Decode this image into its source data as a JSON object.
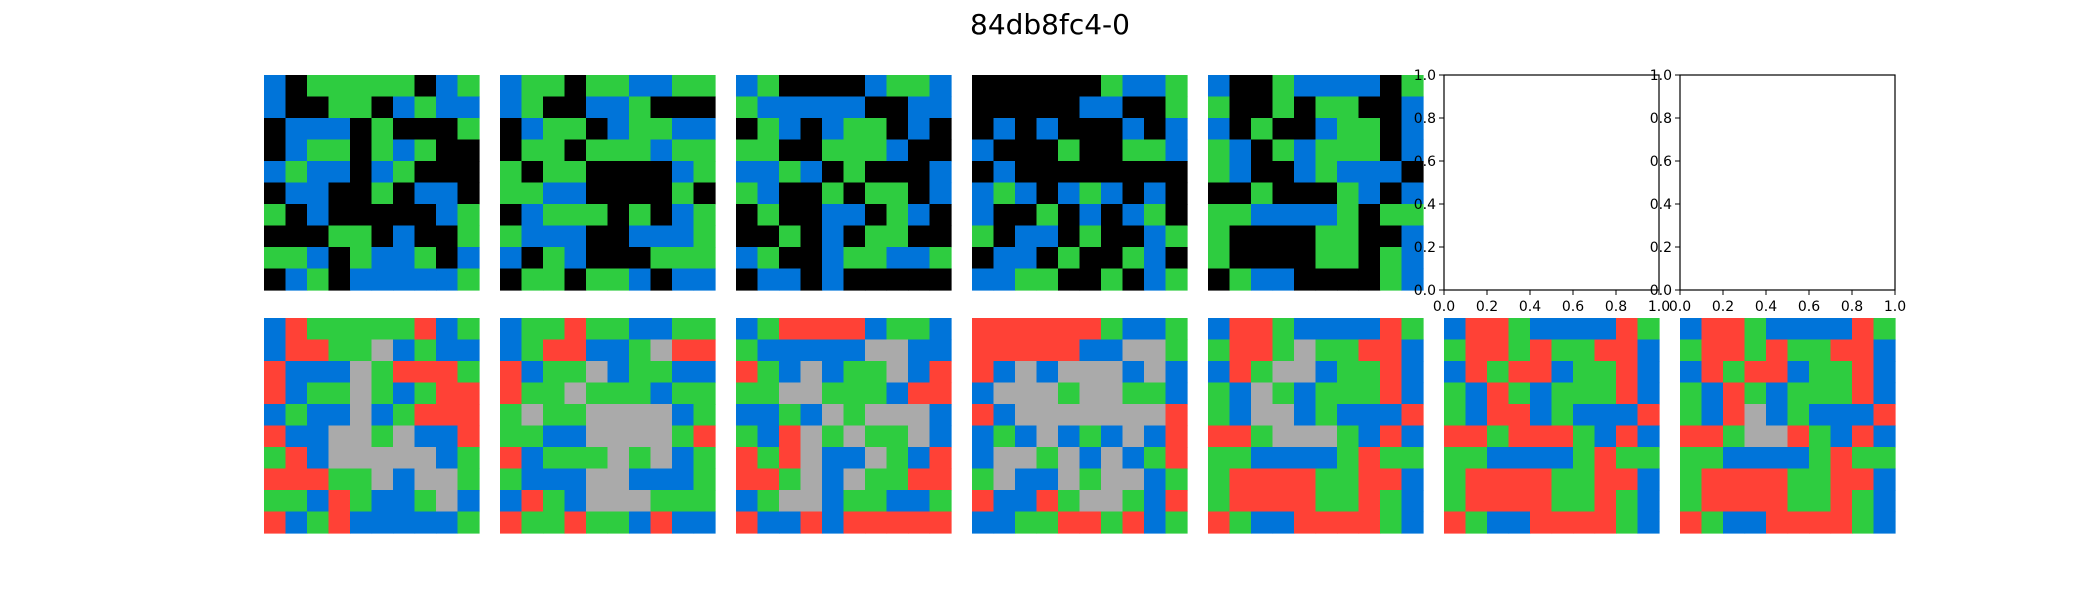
{
  "title": "84db8fc4-0",
  "palette": {
    "0": "#000000",
    "1": "#0074d9",
    "3": "#2ecc40",
    "5": "#aaaaaa",
    "2": "#ff4136",
    "empty_axes_background": "#ffffff"
  },
  "grids": {
    "inputs": [
      [
        [
          1,
          0,
          3,
          3,
          3,
          3,
          3,
          0,
          1,
          3
        ],
        [
          1,
          0,
          0,
          3,
          3,
          0,
          1,
          3,
          1,
          1
        ],
        [
          0,
          1,
          1,
          1,
          0,
          3,
          0,
          0,
          0,
          3
        ],
        [
          0,
          1,
          3,
          3,
          0,
          3,
          1,
          3,
          0,
          0
        ],
        [
          1,
          3,
          1,
          1,
          0,
          1,
          3,
          0,
          0,
          0
        ],
        [
          0,
          1,
          1,
          0,
          0,
          3,
          0,
          1,
          1,
          0
        ],
        [
          3,
          0,
          1,
          0,
          0,
          0,
          0,
          0,
          1,
          3
        ],
        [
          0,
          0,
          0,
          3,
          3,
          0,
          1,
          0,
          0,
          3
        ],
        [
          3,
          3,
          1,
          0,
          3,
          1,
          1,
          3,
          0,
          1
        ],
        [
          0,
          1,
          3,
          0,
          1,
          1,
          1,
          1,
          1,
          3
        ]
      ],
      [
        [
          1,
          3,
          3,
          0,
          3,
          3,
          1,
          1,
          3,
          3
        ],
        [
          1,
          3,
          0,
          0,
          1,
          1,
          3,
          0,
          0,
          0
        ],
        [
          0,
          1,
          3,
          3,
          0,
          1,
          3,
          3,
          1,
          1
        ],
        [
          0,
          3,
          3,
          0,
          3,
          3,
          3,
          1,
          3,
          3
        ],
        [
          3,
          0,
          3,
          3,
          0,
          0,
          0,
          0,
          1,
          3
        ],
        [
          3,
          3,
          1,
          1,
          0,
          0,
          0,
          0,
          3,
          0
        ],
        [
          0,
          1,
          3,
          3,
          3,
          0,
          3,
          0,
          1,
          3
        ],
        [
          3,
          1,
          1,
          1,
          0,
          0,
          1,
          1,
          1,
          3
        ],
        [
          1,
          0,
          3,
          1,
          0,
          0,
          0,
          3,
          3,
          3
        ],
        [
          0,
          3,
          3,
          0,
          3,
          3,
          1,
          0,
          1,
          1
        ]
      ],
      [
        [
          1,
          3,
          0,
          0,
          0,
          0,
          1,
          3,
          3,
          1
        ],
        [
          3,
          1,
          1,
          1,
          1,
          1,
          0,
          0,
          1,
          1
        ],
        [
          0,
          3,
          1,
          0,
          1,
          3,
          3,
          0,
          1,
          0
        ],
        [
          3,
          3,
          0,
          0,
          3,
          3,
          3,
          1,
          0,
          0
        ],
        [
          1,
          1,
          3,
          1,
          0,
          3,
          0,
          0,
          0,
          1
        ],
        [
          3,
          1,
          0,
          0,
          3,
          0,
          3,
          3,
          0,
          1
        ],
        [
          0,
          3,
          0,
          0,
          1,
          1,
          0,
          3,
          1,
          0
        ],
        [
          0,
          0,
          3,
          0,
          1,
          0,
          3,
          3,
          0,
          0
        ],
        [
          1,
          3,
          0,
          0,
          1,
          3,
          3,
          1,
          1,
          3
        ],
        [
          0,
          1,
          1,
          0,
          1,
          0,
          0,
          0,
          0,
          0
        ]
      ],
      [
        [
          0,
          0,
          0,
          0,
          0,
          0,
          3,
          1,
          1,
          3
        ],
        [
          0,
          0,
          0,
          0,
          0,
          1,
          1,
          0,
          0,
          3
        ],
        [
          0,
          1,
          0,
          1,
          0,
          0,
          0,
          1,
          0,
          1
        ],
        [
          1,
          0,
          0,
          0,
          3,
          0,
          0,
          3,
          3,
          1
        ],
        [
          0,
          1,
          0,
          0,
          0,
          0,
          0,
          0,
          0,
          0
        ],
        [
          1,
          3,
          1,
          0,
          1,
          3,
          1,
          0,
          1,
          0
        ],
        [
          1,
          0,
          0,
          3,
          0,
          1,
          0,
          1,
          3,
          0
        ],
        [
          3,
          0,
          1,
          1,
          0,
          3,
          0,
          0,
          1,
          3
        ],
        [
          0,
          1,
          1,
          0,
          3,
          0,
          0,
          3,
          1,
          0
        ],
        [
          1,
          1,
          3,
          3,
          0,
          0,
          3,
          0,
          1,
          3
        ]
      ],
      [
        [
          1,
          0,
          0,
          3,
          1,
          1,
          1,
          1,
          0,
          3
        ],
        [
          3,
          0,
          0,
          3,
          0,
          3,
          3,
          0,
          0,
          1
        ],
        [
          1,
          0,
          3,
          0,
          0,
          1,
          3,
          3,
          0,
          1
        ],
        [
          3,
          1,
          0,
          3,
          1,
          3,
          3,
          3,
          0,
          1
        ],
        [
          3,
          1,
          0,
          0,
          1,
          3,
          1,
          1,
          1,
          0
        ],
        [
          0,
          0,
          3,
          0,
          0,
          0,
          3,
          1,
          0,
          1
        ],
        [
          3,
          3,
          1,
          1,
          1,
          1,
          3,
          0,
          3,
          3
        ],
        [
          3,
          0,
          0,
          0,
          0,
          3,
          3,
          0,
          0,
          1
        ],
        [
          3,
          0,
          0,
          0,
          0,
          3,
          3,
          0,
          3,
          1
        ],
        [
          0,
          3,
          1,
          1,
          0,
          0,
          0,
          0,
          3,
          1
        ]
      ]
    ],
    "outputs": [
      [
        [
          1,
          2,
          3,
          3,
          3,
          3,
          3,
          2,
          1,
          3
        ],
        [
          1,
          2,
          2,
          3,
          3,
          5,
          1,
          3,
          1,
          1
        ],
        [
          2,
          1,
          1,
          1,
          5,
          3,
          2,
          2,
          2,
          3
        ],
        [
          2,
          1,
          3,
          3,
          5,
          3,
          1,
          3,
          2,
          2
        ],
        [
          1,
          3,
          1,
          1,
          5,
          1,
          3,
          2,
          2,
          2
        ],
        [
          2,
          1,
          1,
          5,
          5,
          3,
          5,
          1,
          1,
          2
        ],
        [
          3,
          2,
          1,
          5,
          5,
          5,
          5,
          5,
          1,
          3
        ],
        [
          2,
          2,
          2,
          3,
          3,
          5,
          1,
          5,
          5,
          3
        ],
        [
          3,
          3,
          1,
          2,
          3,
          1,
          1,
          3,
          5,
          1
        ],
        [
          2,
          1,
          3,
          2,
          1,
          1,
          1,
          1,
          1,
          3
        ]
      ],
      [
        [
          1,
          3,
          3,
          2,
          3,
          3,
          1,
          1,
          3,
          3
        ],
        [
          1,
          3,
          2,
          2,
          1,
          1,
          3,
          5,
          2,
          2
        ],
        [
          2,
          1,
          3,
          3,
          5,
          1,
          3,
          3,
          1,
          1
        ],
        [
          2,
          3,
          3,
          5,
          3,
          3,
          3,
          1,
          3,
          3
        ],
        [
          3,
          5,
          3,
          3,
          5,
          5,
          5,
          5,
          1,
          3
        ],
        [
          3,
          3,
          1,
          1,
          5,
          5,
          5,
          5,
          3,
          2
        ],
        [
          2,
          1,
          3,
          3,
          3,
          5,
          3,
          5,
          1,
          3
        ],
        [
          3,
          1,
          1,
          1,
          5,
          5,
          1,
          1,
          1,
          3
        ],
        [
          1,
          2,
          3,
          1,
          5,
          5,
          5,
          3,
          3,
          3
        ],
        [
          2,
          3,
          3,
          2,
          3,
          3,
          1,
          2,
          1,
          1
        ]
      ],
      [
        [
          1,
          3,
          2,
          2,
          2,
          2,
          1,
          3,
          3,
          1
        ],
        [
          3,
          1,
          1,
          1,
          1,
          1,
          5,
          5,
          1,
          1
        ],
        [
          2,
          3,
          1,
          5,
          1,
          3,
          3,
          5,
          1,
          2
        ],
        [
          3,
          3,
          5,
          5,
          3,
          3,
          3,
          1,
          2,
          2
        ],
        [
          1,
          1,
          3,
          1,
          5,
          3,
          5,
          5,
          5,
          1
        ],
        [
          3,
          1,
          2,
          5,
          3,
          5,
          3,
          3,
          5,
          1
        ],
        [
          2,
          3,
          2,
          5,
          1,
          1,
          5,
          3,
          1,
          2
        ],
        [
          2,
          2,
          3,
          5,
          1,
          5,
          3,
          3,
          2,
          2
        ],
        [
          1,
          3,
          5,
          5,
          1,
          3,
          3,
          1,
          1,
          3
        ],
        [
          2,
          1,
          1,
          2,
          1,
          2,
          2,
          2,
          2,
          2
        ]
      ],
      [
        [
          2,
          2,
          2,
          2,
          2,
          2,
          3,
          1,
          1,
          3
        ],
        [
          2,
          2,
          2,
          2,
          2,
          1,
          1,
          5,
          5,
          3
        ],
        [
          2,
          1,
          5,
          1,
          5,
          5,
          5,
          1,
          5,
          1
        ],
        [
          1,
          5,
          5,
          5,
          3,
          5,
          5,
          3,
          3,
          1
        ],
        [
          2,
          1,
          5,
          5,
          5,
          5,
          5,
          5,
          5,
          2
        ],
        [
          1,
          3,
          1,
          5,
          1,
          3,
          1,
          5,
          1,
          2
        ],
        [
          1,
          5,
          5,
          3,
          5,
          1,
          5,
          1,
          3,
          2
        ],
        [
          3,
          5,
          1,
          1,
          5,
          3,
          5,
          5,
          1,
          3
        ],
        [
          2,
          1,
          1,
          2,
          3,
          5,
          5,
          3,
          1,
          2
        ],
        [
          1,
          1,
          3,
          3,
          2,
          2,
          3,
          2,
          1,
          3
        ]
      ],
      [
        [
          1,
          2,
          2,
          3,
          1,
          1,
          1,
          1,
          2,
          3
        ],
        [
          3,
          2,
          2,
          3,
          5,
          3,
          3,
          2,
          2,
          1
        ],
        [
          1,
          2,
          3,
          5,
          5,
          1,
          3,
          3,
          2,
          1
        ],
        [
          3,
          1,
          5,
          3,
          1,
          3,
          3,
          3,
          2,
          1
        ],
        [
          3,
          1,
          5,
          5,
          1,
          3,
          1,
          1,
          1,
          2
        ],
        [
          2,
          2,
          3,
          5,
          5,
          5,
          3,
          1,
          2,
          1
        ],
        [
          3,
          3,
          1,
          1,
          1,
          1,
          3,
          2,
          3,
          3
        ],
        [
          3,
          2,
          2,
          2,
          2,
          3,
          3,
          2,
          2,
          1
        ],
        [
          3,
          2,
          2,
          2,
          2,
          3,
          3,
          2,
          3,
          1
        ],
        [
          2,
          3,
          1,
          1,
          2,
          2,
          2,
          2,
          3,
          1
        ]
      ],
      [
        [
          1,
          2,
          2,
          3,
          1,
          1,
          1,
          1,
          2,
          3
        ],
        [
          3,
          2,
          2,
          3,
          2,
          3,
          3,
          2,
          2,
          1
        ],
        [
          1,
          2,
          3,
          2,
          2,
          1,
          3,
          3,
          2,
          1
        ],
        [
          3,
          1,
          2,
          3,
          1,
          3,
          3,
          3,
          2,
          1
        ],
        [
          3,
          1,
          2,
          2,
          1,
          3,
          1,
          1,
          1,
          2
        ],
        [
          2,
          2,
          3,
          2,
          2,
          2,
          3,
          1,
          2,
          1
        ],
        [
          3,
          3,
          1,
          1,
          1,
          1,
          3,
          2,
          3,
          3
        ],
        [
          3,
          2,
          2,
          2,
          2,
          3,
          3,
          2,
          2,
          1
        ],
        [
          3,
          2,
          2,
          2,
          2,
          3,
          3,
          2,
          3,
          1
        ],
        [
          2,
          3,
          1,
          1,
          2,
          2,
          2,
          2,
          3,
          1
        ]
      ],
      [
        [
          1,
          2,
          2,
          3,
          1,
          1,
          1,
          1,
          2,
          3
        ],
        [
          3,
          2,
          2,
          3,
          2,
          3,
          3,
          2,
          2,
          1
        ],
        [
          1,
          2,
          3,
          2,
          2,
          1,
          3,
          3,
          2,
          1
        ],
        [
          3,
          1,
          2,
          3,
          1,
          3,
          3,
          3,
          2,
          1
        ],
        [
          3,
          1,
          2,
          5,
          1,
          3,
          1,
          1,
          1,
          2
        ],
        [
          2,
          2,
          3,
          5,
          5,
          2,
          3,
          1,
          2,
          1
        ],
        [
          3,
          3,
          1,
          1,
          1,
          1,
          3,
          2,
          3,
          3
        ],
        [
          3,
          2,
          2,
          2,
          2,
          3,
          3,
          2,
          2,
          1
        ],
        [
          3,
          2,
          2,
          2,
          2,
          3,
          3,
          2,
          3,
          1
        ],
        [
          2,
          3,
          1,
          1,
          2,
          2,
          2,
          2,
          3,
          1
        ]
      ]
    ]
  },
  "empty_axes": [
    {
      "xticks": [
        "0.0",
        "0.2",
        "0.4",
        "0.6",
        "0.8",
        "1.0"
      ],
      "yticks": [
        "0.0",
        "0.2",
        "0.4",
        "0.6",
        "0.8",
        "1.0"
      ]
    },
    {
      "xticks": [
        "0.0",
        "0.2",
        "0.4",
        "0.6",
        "0.8",
        "1.0"
      ],
      "yticks": [
        "0.0",
        "0.2",
        "0.4",
        "0.6",
        "0.8",
        "1.0"
      ]
    }
  ]
}
